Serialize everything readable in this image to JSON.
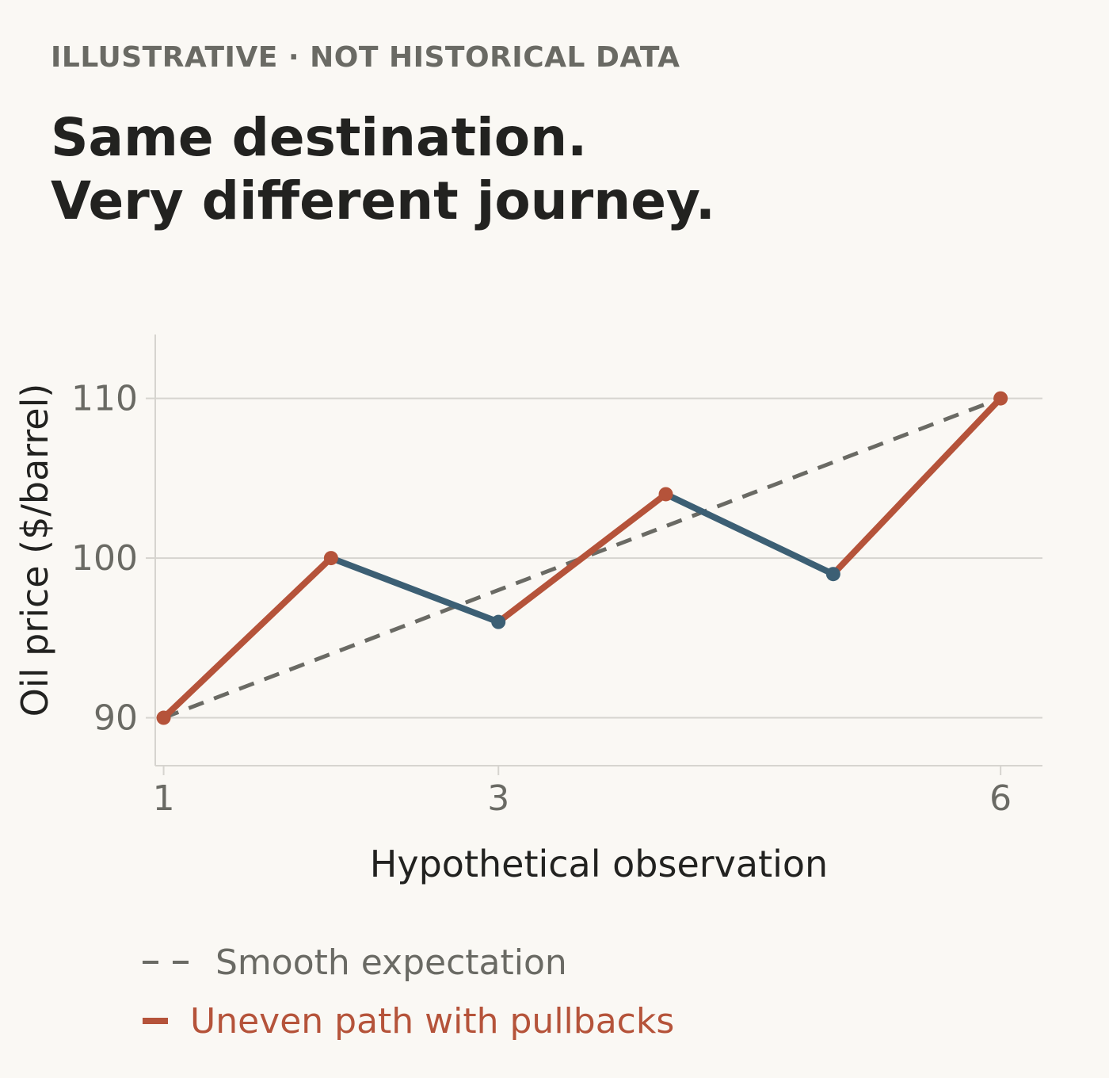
{
  "header": {
    "kicker": "ILLUSTRATIVE · NOT HISTORICAL DATA",
    "title_line1": "Same destination.",
    "title_line2": "Very different journey."
  },
  "colors": {
    "background": "#faf8f4",
    "uneven_up": "#b5533a",
    "uneven_down": "#3c5f74",
    "smooth": "#6a6a64",
    "grid": "#d6d4cf",
    "axis_text": "#6a6a64",
    "label_text": "#222220"
  },
  "legend": {
    "smooth_label": "Smooth expectation",
    "uneven_label": "Uneven path with pullbacks"
  },
  "chart_data": {
    "type": "line",
    "xlabel": "Hypothetical observation",
    "ylabel": "Oil price ($/barrel)",
    "xlim": [
      0.95,
      6.25
    ],
    "ylim": [
      87,
      114
    ],
    "xticks": [
      1,
      3,
      6
    ],
    "yticks": [
      90,
      100,
      110
    ],
    "grid": "horizontal",
    "legend_position": "bottom",
    "series": [
      {
        "name": "Smooth expectation",
        "style": "dashed",
        "x": [
          1,
          6
        ],
        "y": [
          90,
          110
        ]
      },
      {
        "name": "Uneven path with pullbacks",
        "style": "solid",
        "x": [
          1,
          2,
          3,
          4,
          5,
          6
        ],
        "y": [
          90,
          100,
          96,
          104,
          99,
          110
        ]
      }
    ]
  }
}
